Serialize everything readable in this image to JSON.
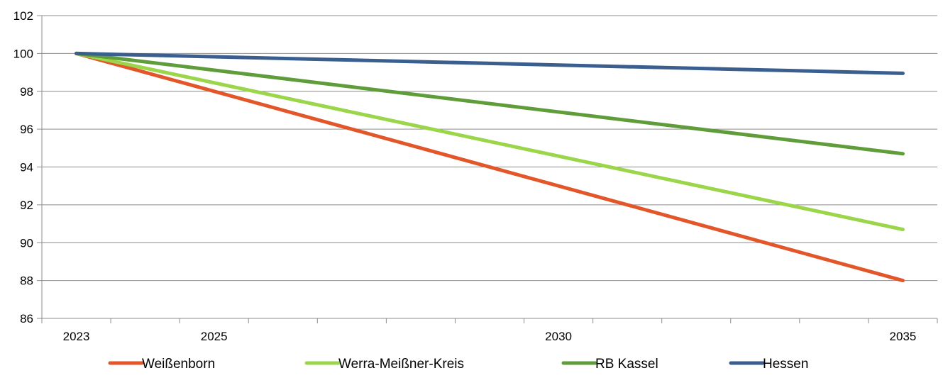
{
  "chart_data": {
    "type": "line",
    "title": "",
    "xlabel": "",
    "ylabel": "",
    "x": [
      2023,
      2035
    ],
    "xlim": [
      2022.5,
      2035.5
    ],
    "xticks": [
      2023,
      2025,
      2030,
      2035
    ],
    "ylim": [
      86,
      102
    ],
    "yticks": [
      86,
      88,
      90,
      92,
      94,
      96,
      98,
      100,
      102
    ],
    "grid": "horizontal",
    "legend_position": "bottom",
    "series": [
      {
        "name": "Weißenborn",
        "color": "#e2562a",
        "values": [
          100,
          88.0
        ]
      },
      {
        "name": "Werra-Meißner-Kreis",
        "color": "#9bd64a",
        "values": [
          100,
          90.7
        ]
      },
      {
        "name": "RB Kassel",
        "color": "#5f9c3a",
        "values": [
          100,
          94.7
        ]
      },
      {
        "name": "Hessen",
        "color": "#3a5f8f",
        "values": [
          100,
          98.95
        ]
      }
    ]
  }
}
